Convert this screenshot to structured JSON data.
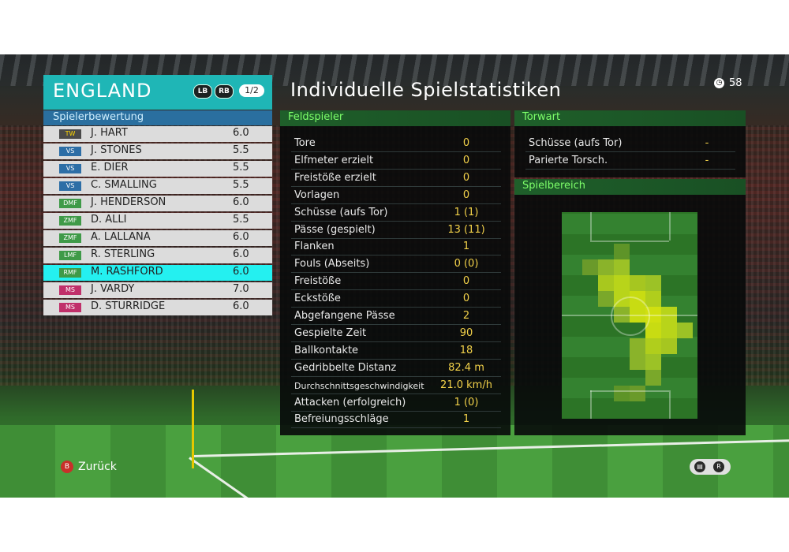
{
  "team": {
    "name": "ENGLAND",
    "btn_left": "LB",
    "btn_right": "RB",
    "page": "1/2"
  },
  "rating_header": "Spielerbewertung",
  "players": [
    {
      "pos": "TW",
      "name": "J. HART",
      "rating": "6.0",
      "group": "gk"
    },
    {
      "pos": "VS",
      "name": "J. STONES",
      "rating": "5.5",
      "group": "def"
    },
    {
      "pos": "VS",
      "name": "E. DIER",
      "rating": "5.5",
      "group": "def"
    },
    {
      "pos": "VS",
      "name": "C. SMALLING",
      "rating": "5.5",
      "group": "def"
    },
    {
      "pos": "DMF",
      "name": "J. HENDERSON",
      "rating": "6.0",
      "group": "mid"
    },
    {
      "pos": "ZMF",
      "name": "D. ALLI",
      "rating": "5.5",
      "group": "mid"
    },
    {
      "pos": "ZMF",
      "name": "A. LALLANA",
      "rating": "6.0",
      "group": "mid"
    },
    {
      "pos": "LMF",
      "name": "R. STERLING",
      "rating": "6.0",
      "group": "mid"
    },
    {
      "pos": "RMF",
      "name": "M. RASHFORD",
      "rating": "6.0",
      "group": "mid",
      "selected": true
    },
    {
      "pos": "MS",
      "name": "J. VARDY",
      "rating": "7.0",
      "group": "att"
    },
    {
      "pos": "MS",
      "name": "D. STURRIDGE",
      "rating": "6.0",
      "group": "att"
    }
  ],
  "title": "Individuelle Spielstatistiken",
  "timer": "58",
  "field_header": "Feldspieler",
  "keeper_header": "Torwart",
  "area_header": "Spielbereich",
  "field_stats": [
    {
      "label": "Tore",
      "value": "0"
    },
    {
      "label": "Elfmeter erzielt",
      "value": "0"
    },
    {
      "label": "Freistöße erzielt",
      "value": "0"
    },
    {
      "label": "Vorlagen",
      "value": "0"
    },
    {
      "label": "Schüsse (aufs Tor)",
      "value": "1 (1)"
    },
    {
      "label": "Pässe (gespielt)",
      "value": "13 (11)"
    },
    {
      "label": "Flanken",
      "value": "1"
    },
    {
      "label": "Fouls (Abseits)",
      "value": "0 (0)"
    },
    {
      "label": "Freistöße",
      "value": "0"
    },
    {
      "label": "Eckstöße",
      "value": "0"
    },
    {
      "label": "Abgefangene Pässe",
      "value": "2"
    },
    {
      "label": "Gespielte Zeit",
      "value": "90"
    },
    {
      "label": "Ballkontakte",
      "value": "18"
    },
    {
      "label": "Gedribbelte Distanz",
      "value": "82.4 m"
    },
    {
      "label": "Durchschnittsgeschwindigkeit",
      "value": "21.0 km/h",
      "small": true
    },
    {
      "label": "Attacken (erfolgreich)",
      "value": "1 (0)"
    },
    {
      "label": "Befreiungsschläge",
      "value": "1"
    }
  ],
  "keeper_stats": [
    {
      "label": "Schüsse (aufs Tor)",
      "value": "-"
    },
    {
      "label": "Parierte Torsch.",
      "value": "-"
    }
  ],
  "footer": {
    "back_button": "B",
    "back_label": "Zurück"
  },
  "colors": {
    "team_accent": "#1fb6b6",
    "selected_row": "#24f0f0",
    "value_text": "#f3d24a",
    "section_text": "#7dff6a"
  }
}
